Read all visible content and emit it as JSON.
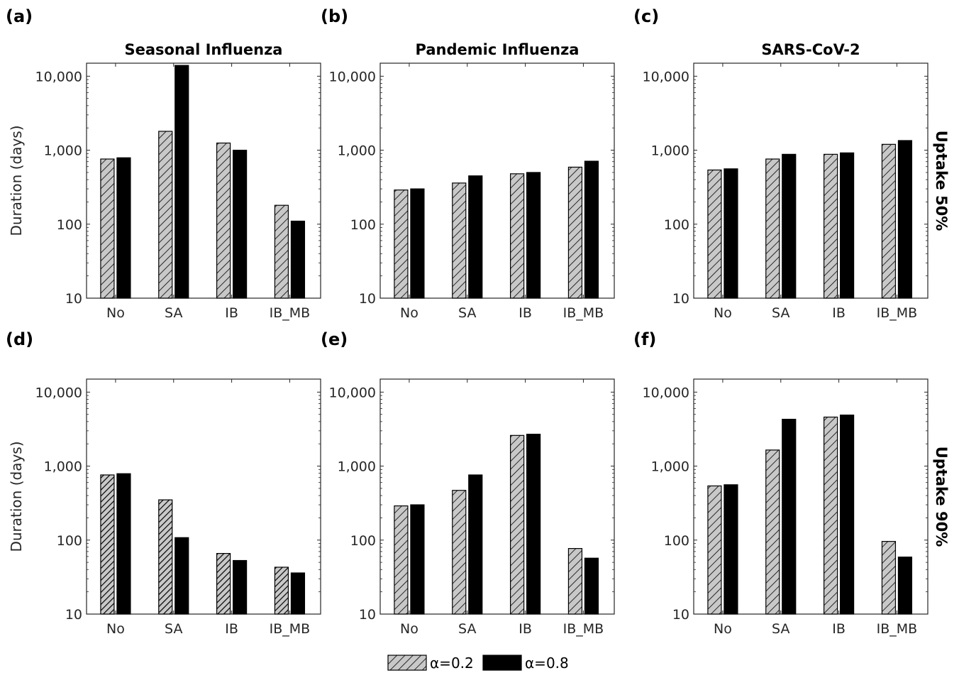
{
  "chart_data": [
    {
      "type": "bar",
      "panel_label": "(a)",
      "title": "Seasonal Influenza",
      "row_label": "",
      "ylabel": "Duration (days)",
      "yscale": "log",
      "ylim": [
        10,
        15000
      ],
      "yticks": [
        10,
        100,
        1000,
        10000
      ],
      "ytick_labels": [
        "10",
        "100",
        "1,000",
        "10,000"
      ],
      "categories": [
        "No",
        "SA",
        "IB",
        "IB_MB"
      ],
      "series": [
        {
          "name": "α=0.2",
          "values": [
            760,
            1800,
            1250,
            180
          ]
        },
        {
          "name": "α=0.8",
          "values": [
            790,
            14000,
            1000,
            110
          ]
        }
      ]
    },
    {
      "type": "bar",
      "panel_label": "(b)",
      "title": "Pandemic Influenza",
      "row_label": "",
      "ylabel": "",
      "yscale": "log",
      "ylim": [
        10,
        15000
      ],
      "yticks": [
        10,
        100,
        1000,
        10000
      ],
      "ytick_labels": [
        "10",
        "100",
        "1,000",
        "10,000"
      ],
      "categories": [
        "No",
        "SA",
        "IB",
        "IB_MB"
      ],
      "series": [
        {
          "name": "α=0.2",
          "values": [
            290,
            360,
            480,
            590
          ]
        },
        {
          "name": "α=0.8",
          "values": [
            300,
            450,
            500,
            710
          ]
        }
      ]
    },
    {
      "type": "bar",
      "panel_label": "(c)",
      "title": "SARS-CoV-2",
      "row_label": "Uptake 50%",
      "ylabel": "",
      "yscale": "log",
      "ylim": [
        10,
        15000
      ],
      "yticks": [
        10,
        100,
        1000,
        10000
      ],
      "ytick_labels": [
        "10",
        "100",
        "1,000",
        "10,000"
      ],
      "categories": [
        "No",
        "SA",
        "IB",
        "IB_MB"
      ],
      "series": [
        {
          "name": "α=0.2",
          "values": [
            540,
            760,
            880,
            1200
          ]
        },
        {
          "name": "α=0.8",
          "values": [
            560,
            880,
            920,
            1350
          ]
        }
      ]
    },
    {
      "type": "bar",
      "panel_label": "(d)",
      "title": "",
      "row_label": "",
      "ylabel": "Duration (days)",
      "yscale": "log",
      "ylim": [
        10,
        15000
      ],
      "yticks": [
        10,
        100,
        1000,
        10000
      ],
      "ytick_labels": [
        "10",
        "100",
        "1,000",
        "10,000"
      ],
      "categories": [
        "No",
        "SA",
        "IB",
        "IB_MB"
      ],
      "series": [
        {
          "name": "α=0.2",
          "values": [
            760,
            350,
            66,
            43
          ]
        },
        {
          "name": "α=0.8",
          "values": [
            790,
            108,
            53,
            36
          ]
        }
      ]
    },
    {
      "type": "bar",
      "panel_label": "(e)",
      "title": "",
      "row_label": "",
      "ylabel": "",
      "yscale": "log",
      "ylim": [
        10,
        15000
      ],
      "yticks": [
        10,
        100,
        1000,
        10000
      ],
      "ytick_labels": [
        "10",
        "100",
        "1,000",
        "10,000"
      ],
      "categories": [
        "No",
        "SA",
        "IB",
        "IB_MB"
      ],
      "series": [
        {
          "name": "α=0.2",
          "values": [
            290,
            470,
            2600,
            77
          ]
        },
        {
          "name": "α=0.8",
          "values": [
            300,
            760,
            2700,
            57
          ]
        }
      ]
    },
    {
      "type": "bar",
      "panel_label": "(f)",
      "title": "",
      "row_label": "Uptake 90%",
      "ylabel": "",
      "yscale": "log",
      "ylim": [
        10,
        15000
      ],
      "yticks": [
        10,
        100,
        1000,
        10000
      ],
      "ytick_labels": [
        "10",
        "100",
        "1,000",
        "10,000"
      ],
      "categories": [
        "No",
        "SA",
        "IB",
        "IB_MB"
      ],
      "series": [
        {
          "name": "α=0.2",
          "values": [
            540,
            1650,
            4600,
            96
          ]
        },
        {
          "name": "α=0.8",
          "values": [
            560,
            4300,
            4900,
            59
          ]
        }
      ]
    }
  ],
  "legend": {
    "placement": "bottom-center",
    "entries": [
      {
        "label": "α=0.2",
        "style": "hatched-gray"
      },
      {
        "label": "α=0.8",
        "style": "solid-black"
      }
    ]
  },
  "colors": {
    "hatch_fill": "#c8c8c8",
    "solid_fill": "#000000",
    "axis": "#262626"
  }
}
